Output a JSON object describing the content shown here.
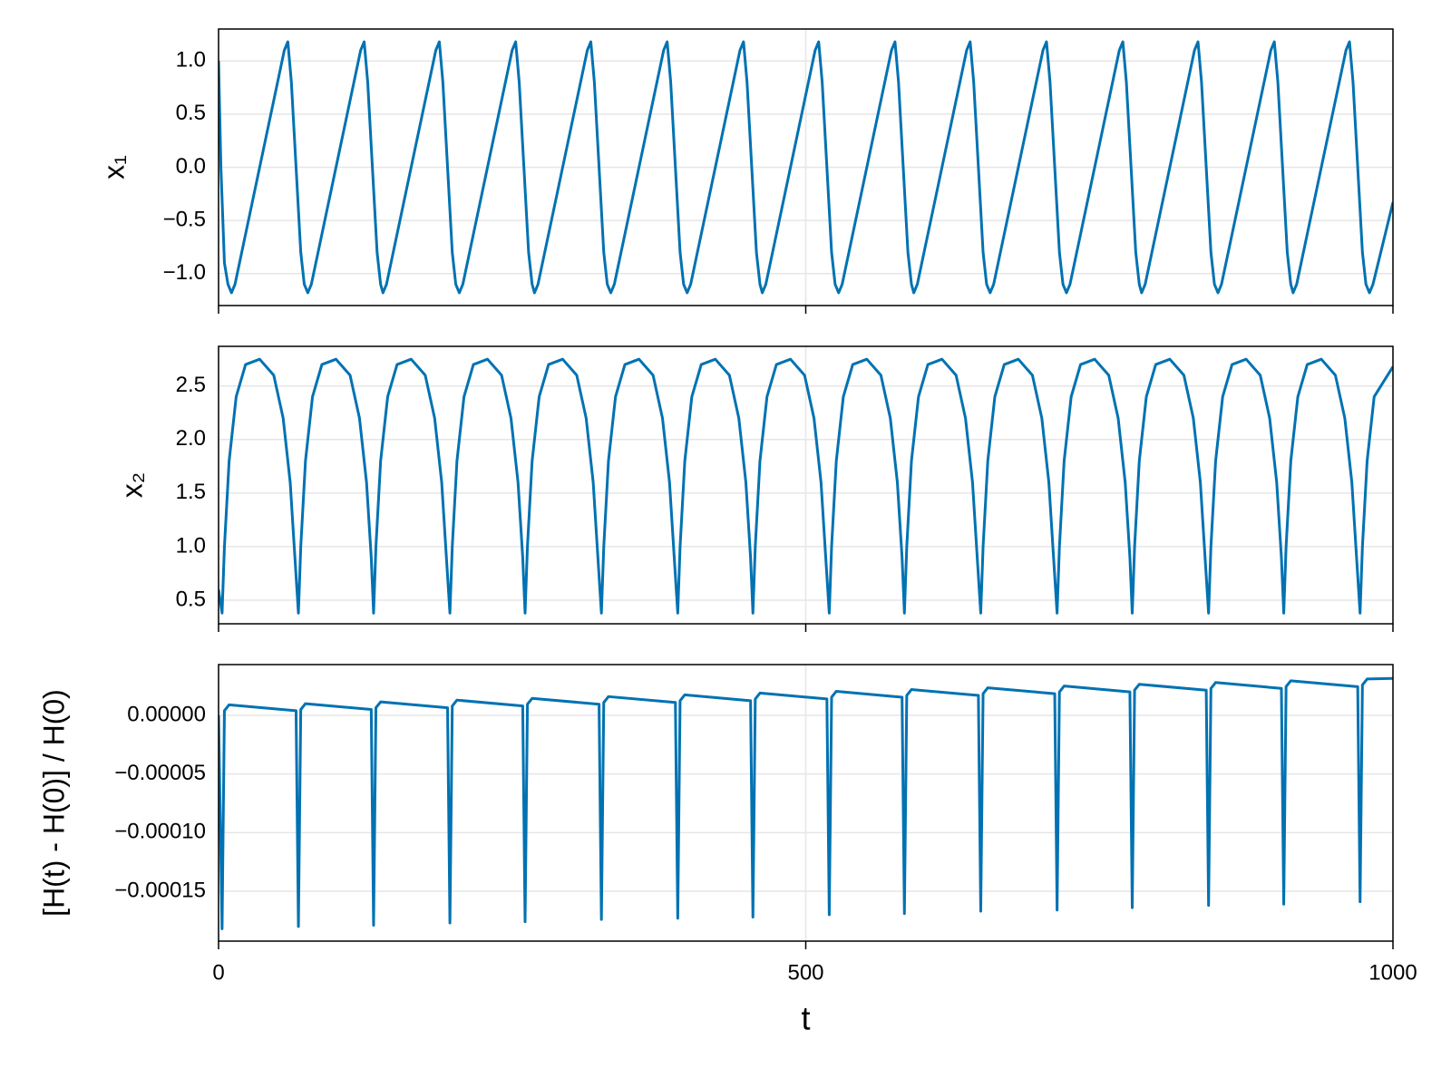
{
  "chart_data": [
    {
      "type": "line",
      "ylabel": "x₁",
      "color": "#0072b2",
      "grid": true,
      "xlim": [
        0,
        1000
      ],
      "xticks": [
        0,
        500,
        1000
      ],
      "ylim": [
        -1.3,
        1.3
      ],
      "yticks": [
        {
          "value": -1,
          "label": "−1.0"
        },
        {
          "value": -0.5,
          "label": "−0.5"
        },
        {
          "value": 0,
          "label": "0.0"
        },
        {
          "value": 0.5,
          "label": "0.5"
        },
        {
          "value": 1,
          "label": "1.0"
        }
      ],
      "x": [
        0,
        2,
        5,
        8,
        11,
        14,
        56,
        59,
        62,
        66,
        70,
        73,
        76,
        79,
        121,
        124,
        127,
        131,
        135,
        138,
        140,
        143,
        185,
        188,
        191,
        195,
        199,
        202,
        205,
        208,
        250,
        253,
        256,
        260,
        264,
        267,
        269,
        272,
        314,
        317,
        320,
        324,
        328,
        331,
        334,
        337,
        379,
        382,
        385,
        389,
        393,
        396,
        399,
        402,
        444,
        447,
        450,
        454,
        458,
        461,
        463,
        466,
        508,
        511,
        514,
        518,
        522,
        525,
        528,
        531,
        573,
        576,
        579,
        583,
        587,
        590,
        592,
        595,
        637,
        640,
        643,
        647,
        651,
        654,
        657,
        660,
        702,
        705,
        708,
        712,
        716,
        719,
        722,
        725,
        767,
        770,
        773,
        777,
        781,
        784,
        786,
        789,
        831,
        834,
        837,
        841,
        845,
        848,
        851,
        854,
        896,
        899,
        902,
        906,
        910,
        913,
        915,
        918,
        960,
        963,
        966,
        970,
        974,
        977,
        980,
        983,
        1000
      ],
      "values": [
        1,
        0,
        -0.9,
        -1.1,
        -1.18,
        -1.1,
        1.1,
        1.18,
        0.8,
        0,
        -0.8,
        -1.1,
        -1.18,
        -1.1,
        1.1,
        1.18,
        0.8,
        0,
        -0.8,
        -1.1,
        -1.18,
        -1.1,
        1.1,
        1.18,
        0.8,
        0,
        -0.8,
        -1.1,
        -1.18,
        -1.1,
        1.1,
        1.18,
        0.8,
        0,
        -0.8,
        -1.1,
        -1.18,
        -1.1,
        1.1,
        1.18,
        0.8,
        0,
        -0.8,
        -1.1,
        -1.18,
        -1.1,
        1.1,
        1.18,
        0.8,
        0,
        -0.8,
        -1.1,
        -1.18,
        -1.1,
        1.1,
        1.18,
        0.8,
        0,
        -0.8,
        -1.1,
        -1.18,
        -1.1,
        1.1,
        1.18,
        0.8,
        0,
        -0.8,
        -1.1,
        -1.18,
        -1.1,
        1.1,
        1.18,
        0.8,
        0,
        -0.8,
        -1.1,
        -1.18,
        -1.1,
        1.1,
        1.18,
        0.8,
        0,
        -0.8,
        -1.1,
        -1.18,
        -1.1,
        1.1,
        1.18,
        0.8,
        0,
        -0.8,
        -1.1,
        -1.18,
        -1.1,
        1.1,
        1.18,
        0.8,
        0,
        -0.8,
        -1.1,
        -1.18,
        -1.1,
        1.1,
        1.18,
        0.8,
        0,
        -0.8,
        -1.1,
        -1.18,
        -1.1,
        1.1,
        1.18,
        0.8,
        0,
        -0.8,
        -1.1,
        -1.18,
        -1.1,
        1.1,
        1.18,
        0.8,
        0,
        -0.8,
        -1.1,
        -1.18,
        -1.1,
        -0.33
      ]
    },
    {
      "type": "line",
      "ylabel": "x₂",
      "color": "#0072b2",
      "grid": true,
      "xlim": [
        0,
        1000
      ],
      "xticks": [
        0,
        500,
        1000
      ],
      "ylim": [
        0.28,
        2.87
      ],
      "yticks": [
        {
          "value": 0.5,
          "label": "0.5"
        },
        {
          "value": 1,
          "label": "1.0"
        },
        {
          "value": 1.5,
          "label": "1.5"
        },
        {
          "value": 2,
          "label": "2.0"
        },
        {
          "value": 2.5,
          "label": "2.5"
        }
      ],
      "x": [
        0,
        3,
        5,
        9,
        15,
        23,
        35,
        47,
        55,
        61,
        65,
        68,
        70,
        74,
        80,
        88,
        100,
        112,
        120,
        126,
        130,
        132,
        134,
        138,
        144,
        152,
        164,
        176,
        184,
        190,
        194,
        197,
        199,
        203,
        209,
        217,
        229,
        241,
        249,
        255,
        259,
        261,
        263,
        267,
        273,
        281,
        293,
        305,
        313,
        319,
        323,
        326,
        328,
        332,
        338,
        346,
        358,
        370,
        378,
        384,
        388,
        391,
        393,
        397,
        403,
        411,
        423,
        435,
        443,
        449,
        453,
        455,
        457,
        461,
        467,
        475,
        487,
        499,
        507,
        513,
        517,
        520,
        522,
        526,
        532,
        540,
        552,
        564,
        572,
        578,
        582,
        584,
        586,
        590,
        596,
        604,
        616,
        628,
        636,
        642,
        646,
        649,
        651,
        655,
        661,
        669,
        681,
        693,
        701,
        707,
        711,
        714,
        716,
        720,
        726,
        734,
        746,
        758,
        766,
        772,
        776,
        778,
        780,
        784,
        790,
        798,
        810,
        822,
        830,
        836,
        840,
        843,
        845,
        849,
        855,
        863,
        875,
        887,
        895,
        901,
        905,
        907,
        909,
        913,
        919,
        927,
        939,
        951,
        959,
        965,
        969,
        972,
        974,
        978,
        984,
        1000
      ],
      "values": [
        0.6,
        0.38,
        1,
        1.8,
        2.4,
        2.7,
        2.75,
        2.6,
        2.2,
        1.6,
        0.9,
        0.38,
        1,
        1.8,
        2.4,
        2.7,
        2.75,
        2.6,
        2.2,
        1.6,
        0.9,
        0.38,
        1,
        1.8,
        2.4,
        2.7,
        2.75,
        2.6,
        2.2,
        1.6,
        0.9,
        0.38,
        1,
        1.8,
        2.4,
        2.7,
        2.75,
        2.6,
        2.2,
        1.6,
        0.9,
        0.38,
        1,
        1.8,
        2.4,
        2.7,
        2.75,
        2.6,
        2.2,
        1.6,
        0.9,
        0.38,
        1,
        1.8,
        2.4,
        2.7,
        2.75,
        2.6,
        2.2,
        1.6,
        0.9,
        0.38,
        1,
        1.8,
        2.4,
        2.7,
        2.75,
        2.6,
        2.2,
        1.6,
        0.9,
        0.38,
        1,
        1.8,
        2.4,
        2.7,
        2.75,
        2.6,
        2.2,
        1.6,
        0.9,
        0.38,
        1,
        1.8,
        2.4,
        2.7,
        2.75,
        2.6,
        2.2,
        1.6,
        0.9,
        0.38,
        1,
        1.8,
        2.4,
        2.7,
        2.75,
        2.6,
        2.2,
        1.6,
        0.9,
        0.38,
        1,
        1.8,
        2.4,
        2.7,
        2.75,
        2.6,
        2.2,
        1.6,
        0.9,
        0.38,
        1,
        1.8,
        2.4,
        2.7,
        2.75,
        2.6,
        2.2,
        1.6,
        0.9,
        0.38,
        1,
        1.8,
        2.4,
        2.7,
        2.75,
        2.6,
        2.2,
        1.6,
        0.9,
        0.38,
        1,
        1.8,
        2.4,
        2.7,
        2.75,
        2.6,
        2.2,
        1.6,
        0.9,
        0.38,
        1,
        1.8,
        2.4,
        2.7,
        2.75,
        2.6,
        2.2,
        1.6,
        0.9,
        0.38,
        1,
        1.8,
        2.4,
        2.68
      ]
    },
    {
      "type": "line",
      "ylabel": "[H(t) - H(0)] / H(0)",
      "xlabel": "t",
      "color": "#0072b2",
      "grid": true,
      "xlim": [
        0,
        1000
      ],
      "xticks": [
        0,
        500,
        1000
      ],
      "ylim": [
        -0.0001925,
        4.33e-05
      ],
      "yticks": [
        {
          "value": -0.00015,
          "label": "−0.00015"
        },
        {
          "value": -0.0001,
          "label": "−0.00010"
        },
        {
          "value": -5e-05,
          "label": "−0.00005"
        },
        {
          "value": 0,
          "label": "0.00000"
        }
      ],
      "x": [
        0,
        3,
        5,
        9,
        66,
        68,
        70,
        74,
        130,
        132,
        134,
        138,
        195,
        197,
        199,
        203,
        259,
        261,
        263,
        267,
        324,
        326,
        328,
        332,
        389,
        391,
        393,
        397,
        453,
        455,
        457,
        461,
        518,
        520,
        522,
        526,
        582,
        584,
        586,
        590,
        647,
        649,
        651,
        655,
        712,
        714,
        716,
        720,
        776,
        778,
        780,
        784,
        841,
        843,
        845,
        849,
        905,
        907,
        909,
        913,
        970,
        972,
        974,
        978,
        1000
      ],
      "values": [
        0,
        -0.000182,
        4e-06,
        9e-06,
        4e-06,
        -0.00018,
        5e-06,
        1e-05,
        5e-06,
        -0.000179,
        6.5e-06,
        1.15e-05,
        6.5e-06,
        -0.000177,
        8e-06,
        1.3e-05,
        8e-06,
        -0.000176,
        9.5e-06,
        1.45e-05,
        9.5e-06,
        -0.000174,
        1.1e-05,
        1.6e-05,
        1.1e-05,
        -0.000173,
        1.25e-05,
        1.75e-05,
        1.25e-05,
        -0.000172,
        1.4e-05,
        1.9e-05,
        1.4e-05,
        -0.00017,
        1.55e-05,
        2.05e-05,
        1.55e-05,
        -0.000169,
        1.7e-05,
        2.2e-05,
        1.7e-05,
        -0.000167,
        1.85e-05,
        2.35e-05,
        1.85e-05,
        -0.000166,
        2e-05,
        2.5e-05,
        2e-05,
        -0.000164,
        2.15e-05,
        2.65e-05,
        2.15e-05,
        -0.000162,
        2.3e-05,
        2.8e-05,
        2.3e-05,
        -0.000161,
        2.45e-05,
        2.95e-05,
        2.45e-05,
        -0.000159,
        2.6e-05,
        3.1e-05,
        3.15e-05
      ]
    }
  ]
}
